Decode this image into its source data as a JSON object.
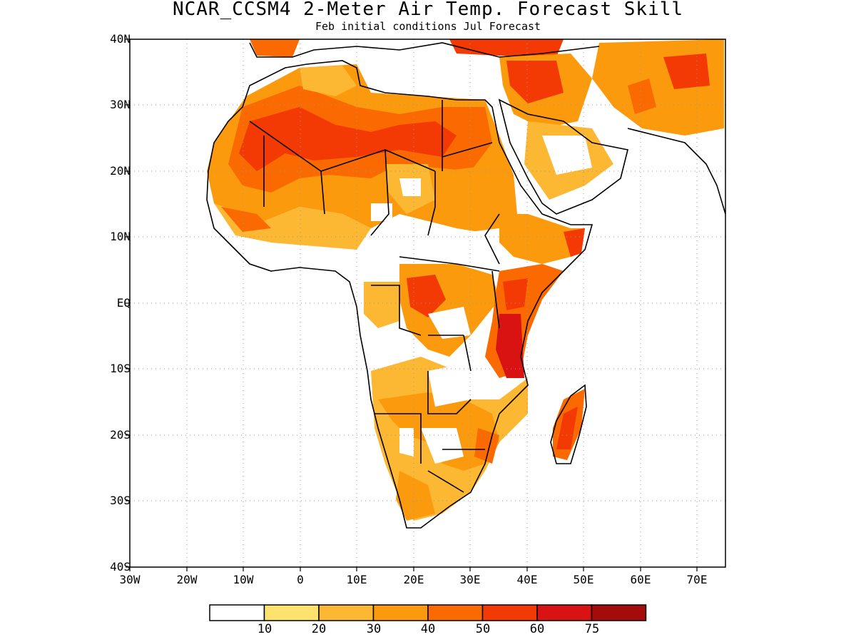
{
  "title": "NCAR_CCSM4 2-Meter Air Temp. Forecast Skill",
  "subtitle": "Feb initial conditions  Jul Forecast",
  "map": {
    "region": "Africa",
    "lon_range": [
      -30,
      75
    ],
    "lat_range": [
      -40,
      40
    ],
    "lat_ticks": [
      "40N",
      "30N",
      "20N",
      "10N",
      "EQ",
      "10S",
      "20S",
      "30S",
      "40S"
    ],
    "lon_ticks": [
      "30W",
      "20W",
      "10W",
      "0",
      "10E",
      "20E",
      "30E",
      "40E",
      "50E",
      "60E",
      "70E"
    ],
    "gridlines": "dotted"
  },
  "colorbar": {
    "levels": [
      "10",
      "20",
      "30",
      "40",
      "50",
      "60",
      "75"
    ],
    "colors": [
      "#ffffff",
      "#fde26e",
      "#fcb733",
      "#fb9a0c",
      "#fa6a00",
      "#f33a05",
      "#d91212",
      "#a40b0b"
    ]
  }
}
